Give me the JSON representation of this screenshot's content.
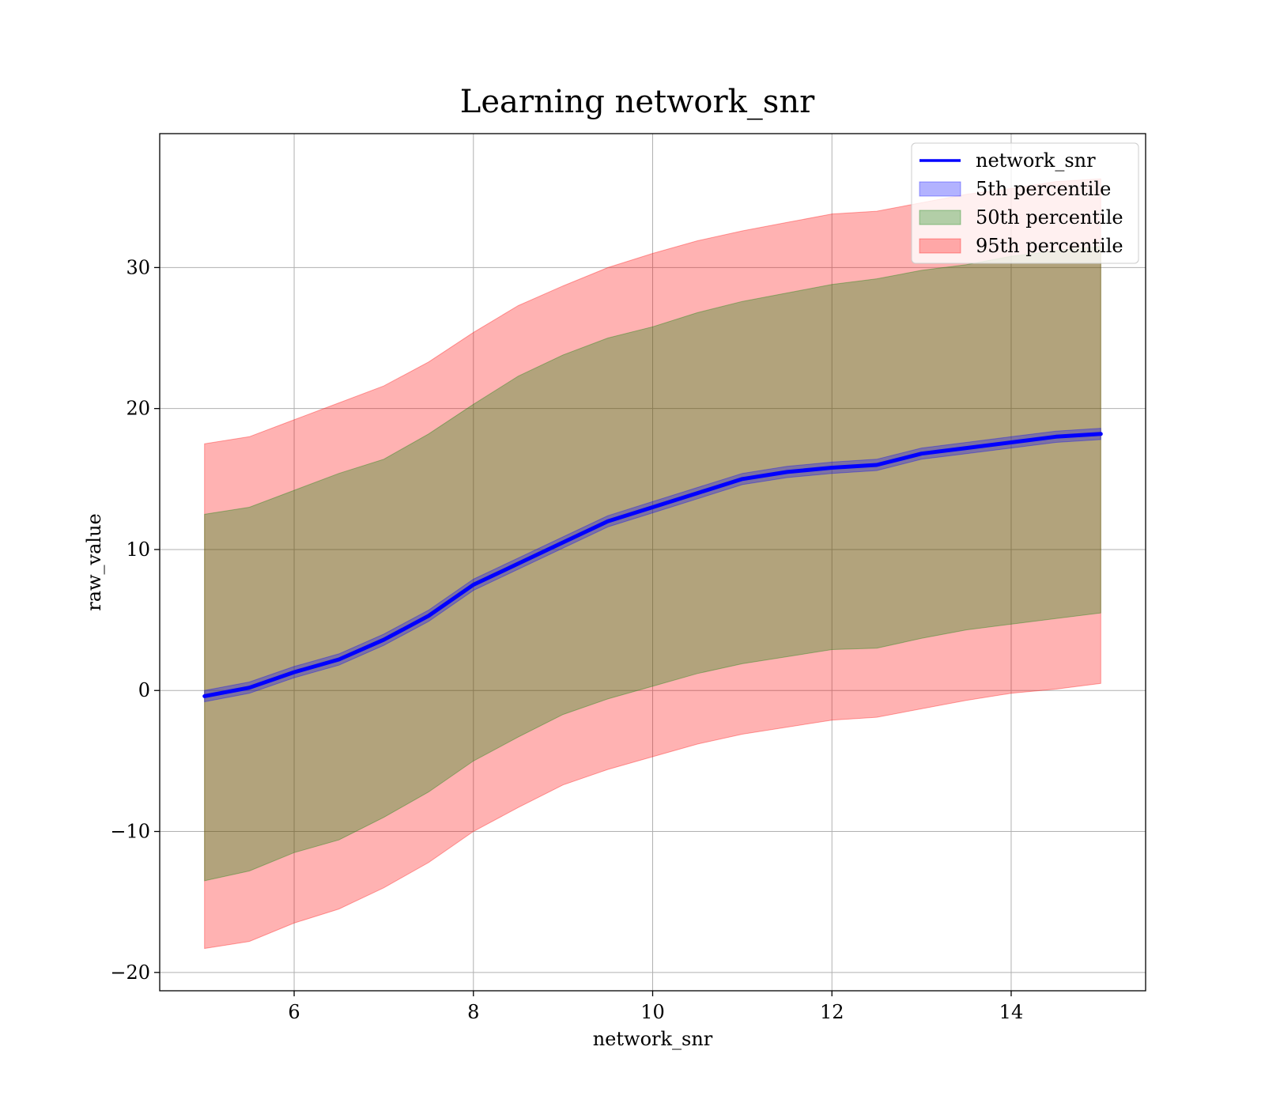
{
  "chart_data": {
    "type": "area",
    "title": "Learning network_snr",
    "xlabel": "network_snr",
    "ylabel": "raw_value",
    "xlim": [
      4.5,
      15.5
    ],
    "ylim": [
      -21.3,
      39.5
    ],
    "xticks": [
      6,
      8,
      10,
      12,
      14
    ],
    "xtick_labels": [
      "6",
      "8",
      "10",
      "12",
      "14"
    ],
    "yticks": [
      -20,
      -10,
      0,
      10,
      20,
      30
    ],
    "ytick_labels": [
      "−20",
      "−10",
      "0",
      "10",
      "20",
      "30"
    ],
    "grid": true,
    "legend_position": "upper right",
    "x": [
      5,
      5.5,
      6,
      6.5,
      7,
      7.5,
      8,
      8.5,
      9,
      9.5,
      10,
      10.5,
      11,
      11.5,
      12,
      12.5,
      13,
      13.5,
      14,
      14.5,
      15
    ],
    "series": [
      {
        "name": "network_snr",
        "kind": "line",
        "color": "#0000ff",
        "values": [
          -0.4,
          0.2,
          1.3,
          2.2,
          3.6,
          5.3,
          7.5,
          9.0,
          10.5,
          12.0,
          13.0,
          14.0,
          15.0,
          15.5,
          15.8,
          16.0,
          16.8,
          17.2,
          17.6,
          18.0,
          18.2
        ]
      },
      {
        "name": "5th percentile",
        "kind": "band",
        "color": "#0000ff",
        "lower": [
          -0.8,
          -0.2,
          0.9,
          1.8,
          3.2,
          4.9,
          7.1,
          8.6,
          10.1,
          11.6,
          12.6,
          13.6,
          14.6,
          15.1,
          15.4,
          15.6,
          16.4,
          16.8,
          17.2,
          17.6,
          17.8
        ],
        "upper": [
          0.0,
          0.6,
          1.7,
          2.6,
          4.0,
          5.7,
          7.9,
          9.4,
          10.9,
          12.4,
          13.4,
          14.4,
          15.4,
          15.9,
          16.2,
          16.4,
          17.2,
          17.6,
          18.0,
          18.4,
          18.6
        ]
      },
      {
        "name": "50th percentile",
        "kind": "band",
        "color": "#008000",
        "lower": [
          -13.5,
          -12.8,
          -11.5,
          -10.6,
          -9.0,
          -7.2,
          -5.0,
          -3.3,
          -1.7,
          -0.6,
          0.3,
          1.2,
          1.9,
          2.4,
          2.9,
          3.0,
          3.7,
          4.3,
          4.7,
          5.1,
          5.5
        ],
        "upper": [
          12.5,
          13.0,
          14.2,
          15.4,
          16.4,
          18.2,
          20.3,
          22.3,
          23.8,
          25.0,
          25.8,
          26.8,
          27.6,
          28.2,
          28.8,
          29.2,
          29.8,
          30.2,
          30.8,
          31.2,
          31.5
        ]
      },
      {
        "name": "95th percentile",
        "kind": "band",
        "color": "#ff0000",
        "lower": [
          -18.3,
          -17.8,
          -16.5,
          -15.5,
          -14.0,
          -12.2,
          -10.0,
          -8.3,
          -6.7,
          -5.6,
          -4.7,
          -3.8,
          -3.1,
          -2.6,
          -2.1,
          -1.9,
          -1.3,
          -0.7,
          -0.2,
          0.1,
          0.5
        ],
        "upper": [
          17.5,
          18.0,
          19.2,
          20.4,
          21.6,
          23.3,
          25.4,
          27.3,
          28.7,
          30.0,
          31.0,
          31.9,
          32.6,
          33.2,
          33.8,
          34.0,
          34.6,
          35.2,
          35.6,
          36.1,
          36.3
        ]
      }
    ]
  }
}
